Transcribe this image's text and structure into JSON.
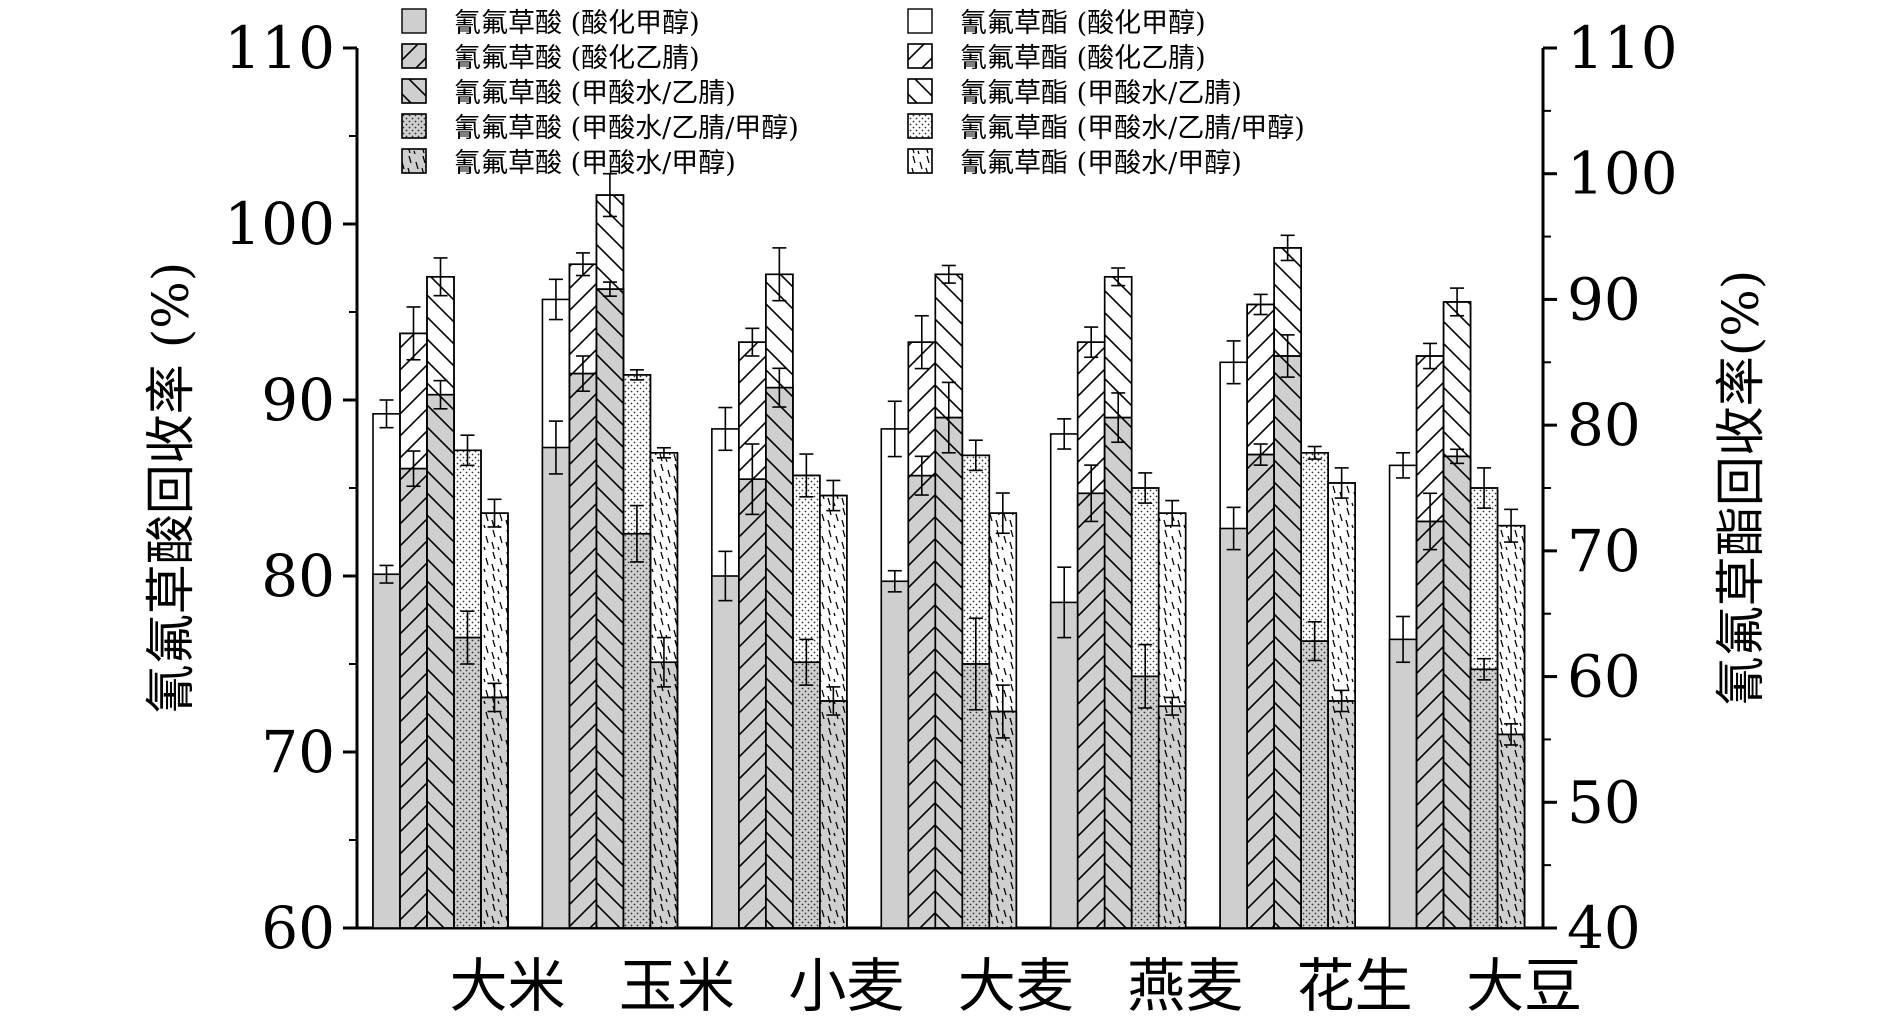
{
  "chart_data": {
    "type": "bar",
    "categories": [
      "大米",
      "玉米",
      "小麦",
      "大麦",
      "燕麦",
      "花生",
      "大豆"
    ],
    "ylabel_left": "氰氟草酸回收率 (%)",
    "ylabel_right": "氰氟草酯回收率(%)",
    "ylim_left": [
      60,
      110
    ],
    "ylim_right": [
      40,
      110
    ],
    "yticks_left": [
      "60",
      "70",
      "80",
      "90",
      "100",
      "110"
    ],
    "yticks_right": [
      "40",
      "50",
      "60",
      "70",
      "80",
      "90",
      "100",
      "110"
    ],
    "grid": false,
    "legend_placement": "top",
    "series": [
      {
        "name": "氰氟草酸 (酸化甲醇)",
        "axis": "left",
        "group": 0,
        "pattern": "solid-gray",
        "values": [
          80.1,
          87.3,
          80.0,
          79.7,
          78.5,
          82.7,
          76.4
        ],
        "errors": [
          0.5,
          1.5,
          1.4,
          0.6,
          2.0,
          1.2,
          1.3
        ]
      },
      {
        "name": "氰氟草酯 (酸化甲醇)",
        "axis": "right",
        "group": 0,
        "pattern": "white",
        "values": [
          80.9,
          90.0,
          79.7,
          79.7,
          79.3,
          85.0,
          76.8
        ],
        "errors": [
          1.1,
          1.6,
          1.7,
          2.2,
          1.2,
          1.7,
          1.0
        ]
      },
      {
        "name": "氰氟草酸 (酸化乙腈)",
        "axis": "left",
        "group": 1,
        "pattern": "diag-gray",
        "values": [
          86.1,
          91.5,
          85.5,
          85.7,
          84.7,
          86.9,
          83.1
        ],
        "errors": [
          1.0,
          1.0,
          2.0,
          1.1,
          1.6,
          0.6,
          1.6
        ]
      },
      {
        "name": "氰氟草酯 (酸化乙腈)",
        "axis": "right",
        "group": 1,
        "pattern": "diag-white",
        "values": [
          87.3,
          92.8,
          86.6,
          86.6,
          86.6,
          89.6,
          85.5
        ],
        "errors": [
          2.1,
          0.9,
          1.1,
          2.1,
          1.2,
          0.8,
          1.0
        ]
      },
      {
        "name": "氰氟草酸 (甲酸水/乙腈)",
        "axis": "left",
        "group": 2,
        "pattern": "back-gray",
        "values": [
          90.3,
          96.3,
          90.7,
          89.0,
          89.0,
          92.5,
          86.8
        ],
        "errors": [
          0.8,
          0.4,
          1.1,
          2.0,
          1.4,
          1.2,
          0.4
        ]
      },
      {
        "name": "氰氟草酯 (甲酸水/乙腈)",
        "axis": "right",
        "group": 2,
        "pattern": "back-white",
        "values": [
          91.8,
          98.3,
          92.0,
          92.0,
          91.8,
          94.1,
          89.8
        ],
        "errors": [
          1.5,
          1.7,
          2.1,
          0.7,
          0.7,
          1.0,
          1.1
        ]
      },
      {
        "name": "氰氟草酸 (甲酸水/乙腈/甲醇)",
        "axis": "left",
        "group": 3,
        "pattern": "dots-gray",
        "values": [
          76.5,
          82.4,
          75.1,
          75.0,
          74.3,
          76.3,
          74.7
        ],
        "errors": [
          1.5,
          1.6,
          1.3,
          2.6,
          1.8,
          1.1,
          0.6
        ]
      },
      {
        "name": "氰氟草酯 (甲酸水/乙腈/甲醇)",
        "axis": "right",
        "group": 3,
        "pattern": "dots-white",
        "values": [
          78.0,
          84.0,
          76.0,
          77.6,
          75.0,
          77.8,
          75.0
        ],
        "errors": [
          1.2,
          0.4,
          1.7,
          1.2,
          1.2,
          0.5,
          1.6
        ]
      },
      {
        "name": "氰氟草酸 (甲酸水/甲醇)",
        "axis": "left",
        "group": 4,
        "pattern": "dash-gray",
        "values": [
          73.1,
          75.1,
          72.9,
          72.3,
          72.6,
          72.9,
          71.0
        ],
        "errors": [
          0.8,
          1.4,
          0.8,
          1.5,
          0.5,
          0.6,
          0.6
        ]
      },
      {
        "name": "氰氟草酯 (甲酸水/甲醇)",
        "axis": "right",
        "group": 4,
        "pattern": "dash-white",
        "values": [
          73.0,
          77.8,
          74.4,
          73.0,
          73.0,
          75.4,
          72.0
        ],
        "errors": [
          1.1,
          0.4,
          1.2,
          1.6,
          1.0,
          1.2,
          1.3
        ]
      }
    ]
  }
}
